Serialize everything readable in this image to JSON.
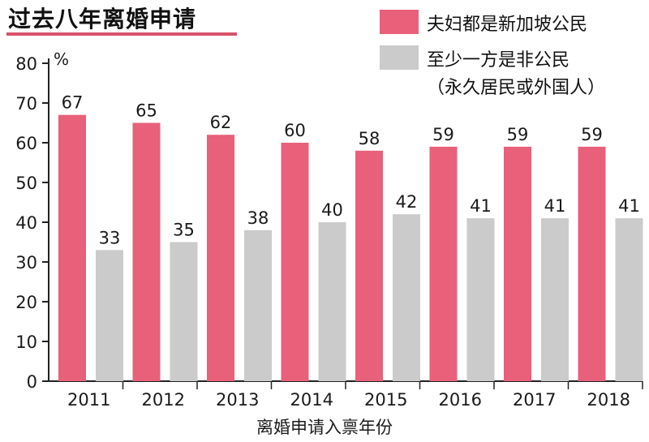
{
  "colors": {
    "citizen_pair": "#e8607a",
    "non_citizen": "#cbcbcb",
    "axis": "#222222",
    "accent_underline": "#d8516b"
  },
  "chart_data": {
    "type": "bar",
    "title": "过去八年离婚申请",
    "xlabel": "离婚申请入禀年份",
    "ylabel": "%",
    "ylim": [
      0,
      80
    ],
    "yticks": [
      0,
      10,
      20,
      30,
      40,
      50,
      60,
      70,
      80
    ],
    "categories": [
      "2011",
      "2012",
      "2013",
      "2014",
      "2015",
      "2016",
      "2017",
      "2018"
    ],
    "series": [
      {
        "name": "夫妇都是新加坡公民",
        "values": [
          67,
          65,
          62,
          60,
          58,
          59,
          59,
          59
        ]
      },
      {
        "name": "至少一方是非公民",
        "name_note": "（永久居民或外国人）",
        "values": [
          33,
          35,
          38,
          40,
          42,
          41,
          41,
          41
        ]
      }
    ],
    "legend_position": "top-right",
    "grid": false
  }
}
